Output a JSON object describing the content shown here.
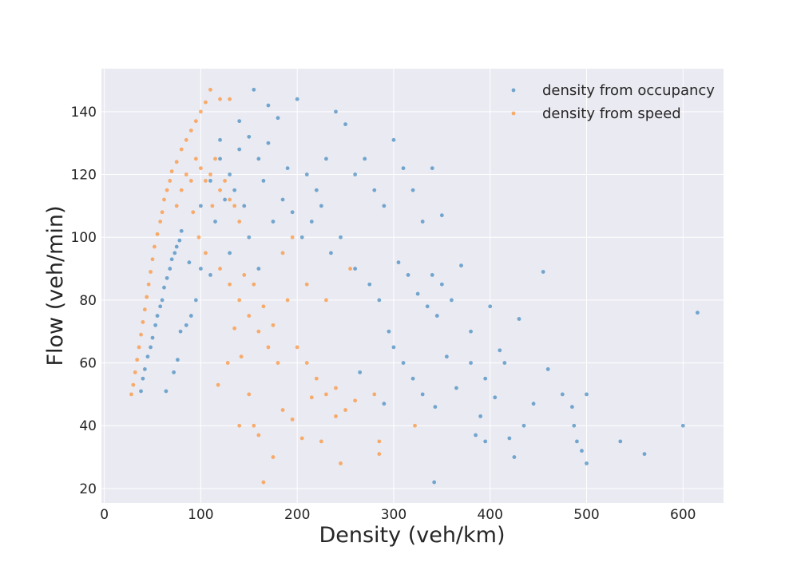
{
  "chart_data": {
    "type": "scatter",
    "x_label": "Density (veh/km)",
    "y_label": "Flow (veh/min)",
    "xlim": [
      -3,
      642
    ],
    "ylim": [
      15.4,
      153.7
    ],
    "xticks": [
      0,
      100,
      200,
      300,
      400,
      500,
      600
    ],
    "yticks": [
      20,
      40,
      60,
      80,
      100,
      120,
      140
    ],
    "grid": true,
    "legend": "upper right",
    "background": "#eaeaf2",
    "series": [
      {
        "name": "density from occupancy",
        "color": "#1f77b4",
        "x": [
          38,
          40,
          42,
          45,
          48,
          50,
          53,
          55,
          58,
          60,
          62,
          65,
          68,
          70,
          73,
          75,
          78,
          80,
          64,
          72,
          76,
          79,
          85,
          90,
          95,
          88,
          100,
          110,
          120,
          130,
          140,
          150,
          155,
          160,
          170,
          180,
          190,
          200,
          210,
          220,
          230,
          240,
          250,
          115,
          125,
          135,
          145,
          165,
          175,
          185,
          195,
          205,
          215,
          225,
          235,
          245,
          150,
          160,
          130,
          110,
          100,
          140,
          170,
          120,
          260,
          270,
          280,
          290,
          300,
          310,
          320,
          330,
          340,
          350,
          260,
          275,
          285,
          295,
          305,
          315,
          325,
          335,
          345,
          360,
          370,
          265,
          290,
          300,
          310,
          320,
          330,
          343,
          342,
          355,
          365,
          380,
          385,
          390,
          395,
          400,
          405,
          410,
          415,
          420,
          425,
          430,
          435,
          445,
          455,
          460,
          475,
          485,
          487,
          490,
          495,
          500,
          500,
          535,
          560,
          600,
          615,
          380,
          395,
          350,
          340
        ],
        "values": [
          51,
          55,
          58,
          62,
          65,
          68,
          72,
          75,
          78,
          80,
          84,
          87,
          90,
          93,
          95,
          97,
          99,
          102,
          51,
          57,
          61,
          70,
          72,
          75,
          80,
          92,
          110,
          118,
          125,
          120,
          128,
          132,
          147,
          125,
          130,
          138,
          122,
          144,
          120,
          115,
          125,
          140,
          136,
          105,
          112,
          115,
          110,
          118,
          105,
          112,
          108,
          100,
          105,
          110,
          95,
          100,
          100,
          90,
          95,
          88,
          90,
          137,
          142,
          131,
          120,
          125,
          115,
          110,
          131,
          122,
          115,
          105,
          122,
          107,
          90,
          85,
          80,
          70,
          92,
          88,
          82,
          78,
          75,
          80,
          91,
          57,
          47,
          65,
          60,
          55,
          50,
          46,
          22,
          62,
          52,
          70,
          37,
          43,
          35,
          78,
          49,
          64,
          60,
          36,
          30,
          74,
          40,
          47,
          89,
          58,
          50,
          46,
          40,
          35,
          32,
          50,
          28,
          35,
          31,
          40,
          76,
          60,
          55,
          85,
          88
        ]
      },
      {
        "name": "density from speed",
        "color": "#ff7f0e",
        "x": [
          28,
          30,
          32,
          34,
          36,
          38,
          40,
          42,
          44,
          46,
          48,
          50,
          52,
          55,
          58,
          60,
          62,
          65,
          68,
          70,
          75,
          80,
          85,
          90,
          95,
          100,
          105,
          110,
          120,
          130,
          75,
          80,
          85,
          90,
          95,
          100,
          105,
          110,
          115,
          120,
          125,
          130,
          135,
          140,
          92,
          98,
          105,
          112,
          120,
          130,
          140,
          150,
          160,
          170,
          180,
          145,
          155,
          165,
          175,
          190,
          200,
          210,
          220,
          230,
          240,
          250,
          150,
          155,
          160,
          165,
          175,
          185,
          195,
          205,
          215,
          225,
          245,
          280,
          285,
          285,
          322,
          260,
          240,
          140,
          118,
          210,
          230,
          255,
          185,
          195,
          135,
          128,
          142
        ],
        "values": [
          50,
          53,
          57,
          61,
          65,
          69,
          73,
          77,
          81,
          85,
          89,
          93,
          97,
          101,
          105,
          108,
          112,
          115,
          118,
          121,
          124,
          128,
          131,
          134,
          137,
          140,
          143,
          147,
          144,
          144,
          110,
          115,
          120,
          118,
          125,
          122,
          118,
          120,
          125,
          115,
          118,
          112,
          110,
          105,
          108,
          100,
          95,
          110,
          90,
          85,
          80,
          75,
          70,
          65,
          60,
          88,
          85,
          78,
          72,
          80,
          65,
          60,
          55,
          50,
          52,
          45,
          50,
          40,
          37,
          22,
          30,
          45,
          42,
          36,
          49,
          35,
          28,
          50,
          35,
          31,
          40,
          48,
          43,
          40,
          53,
          85,
          80,
          90,
          95,
          100,
          71,
          60,
          62
        ]
      }
    ]
  }
}
